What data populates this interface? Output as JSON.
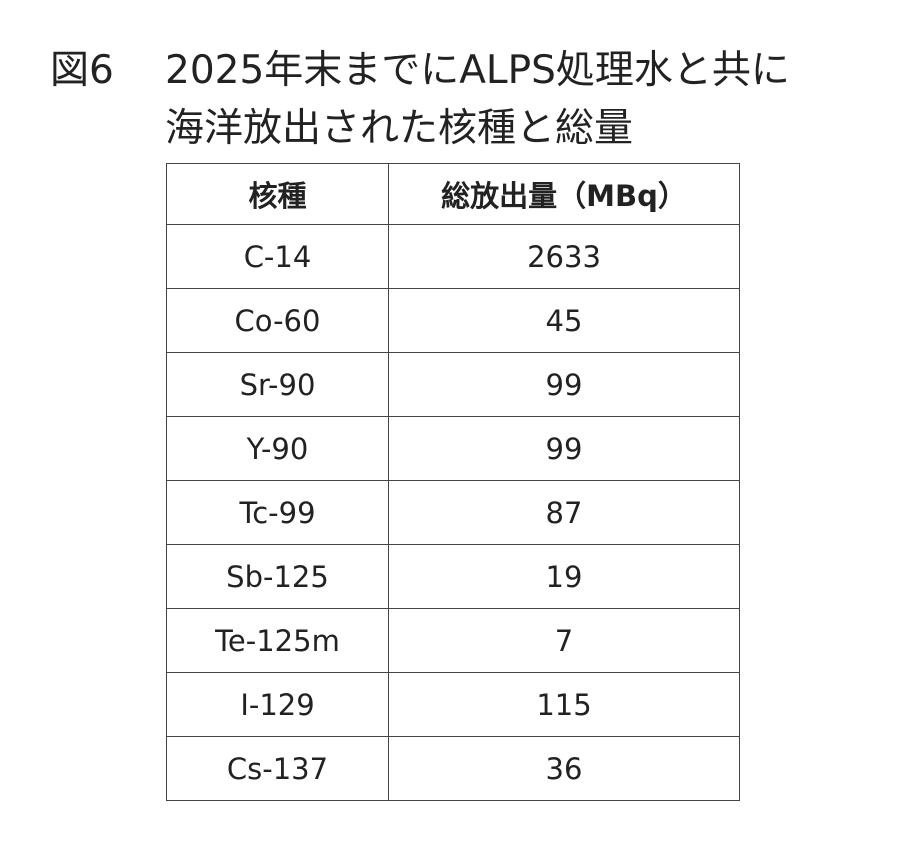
{
  "header": {
    "figure_label": "図6",
    "title_lines": [
      "2025年末までにALPS処理水と共に",
      "海洋放出された核種と総量"
    ]
  },
  "table": {
    "columns": [
      "核種",
      "総放出量（MBq）"
    ],
    "rows": [
      [
        "C-14",
        2633
      ],
      [
        "Co-60",
        45
      ],
      [
        "Sr-90",
        99
      ],
      [
        "Y-90",
        99
      ],
      [
        "Tc-99",
        87
      ],
      [
        "Sb-125",
        19
      ],
      [
        "Te-125m",
        7
      ],
      [
        "I-129",
        115
      ],
      [
        "Cs-137",
        36
      ]
    ]
  }
}
